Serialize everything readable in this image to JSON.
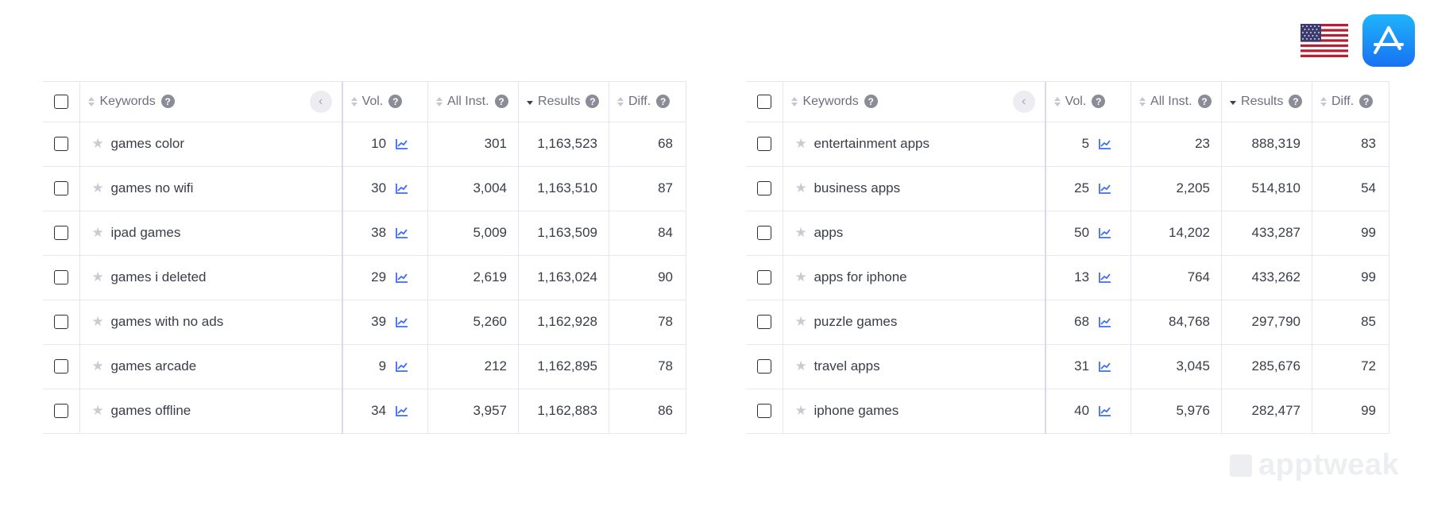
{
  "header": {
    "country_flag": "us-flag-icon",
    "store_icon": "app-store-icon"
  },
  "columns": {
    "keywords": "Keywords",
    "vol": "Vol.",
    "all_inst": "All Inst.",
    "results": "Results",
    "diff": "Diff.",
    "help": "?"
  },
  "left": {
    "rows": [
      {
        "keyword": "games color",
        "vol": "10",
        "all_inst": "301",
        "results": "1,163,523",
        "diff": "68"
      },
      {
        "keyword": "games no wifi",
        "vol": "30",
        "all_inst": "3,004",
        "results": "1,163,510",
        "diff": "87"
      },
      {
        "keyword": "ipad games",
        "vol": "38",
        "all_inst": "5,009",
        "results": "1,163,509",
        "diff": "84"
      },
      {
        "keyword": "games i deleted",
        "vol": "29",
        "all_inst": "2,619",
        "results": "1,163,024",
        "diff": "90"
      },
      {
        "keyword": "games with no ads",
        "vol": "39",
        "all_inst": "5,260",
        "results": "1,162,928",
        "diff": "78"
      },
      {
        "keyword": "games arcade",
        "vol": "9",
        "all_inst": "212",
        "results": "1,162,895",
        "diff": "78"
      },
      {
        "keyword": "games offline",
        "vol": "34",
        "all_inst": "3,957",
        "results": "1,162,883",
        "diff": "86"
      }
    ]
  },
  "right": {
    "rows": [
      {
        "keyword": "entertainment apps",
        "vol": "5",
        "all_inst": "23",
        "results": "888,319",
        "diff": "83"
      },
      {
        "keyword": "business apps",
        "vol": "25",
        "all_inst": "2,205",
        "results": "514,810",
        "diff": "54"
      },
      {
        "keyword": "apps",
        "vol": "50",
        "all_inst": "14,202",
        "results": "433,287",
        "diff": "99"
      },
      {
        "keyword": "apps for iphone",
        "vol": "13",
        "all_inst": "764",
        "results": "433,262",
        "diff": "99"
      },
      {
        "keyword": "puzzle games",
        "vol": "68",
        "all_inst": "84,768",
        "results": "297,790",
        "diff": "85"
      },
      {
        "keyword": "travel apps",
        "vol": "31",
        "all_inst": "3,045",
        "results": "285,676",
        "diff": "72"
      },
      {
        "keyword": "iphone games",
        "vol": "40",
        "all_inst": "5,976",
        "results": "282,477",
        "diff": "99"
      }
    ]
  },
  "brand": {
    "name": "apptweak"
  }
}
